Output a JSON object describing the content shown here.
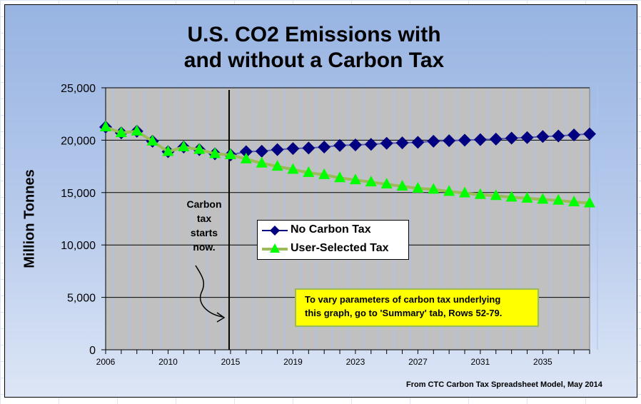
{
  "chart_data": {
    "type": "line",
    "title": "U.S. CO2 Emissions with and without a Carbon Tax",
    "title_lines": [
      "U.S. CO2 Emissions with",
      "and without a Carbon Tax"
    ],
    "xlabel": "",
    "ylabel": "Million Tonnes",
    "ylim": [
      0,
      25000
    ],
    "yticks": [
      "0",
      "5,000",
      "10,000",
      "15,000",
      "20,000",
      "25,000"
    ],
    "ytick_values": [
      0,
      5000,
      10000,
      15000,
      20000,
      25000
    ],
    "x_tick_labels": [
      "2006",
      "2010",
      "2015",
      "2019",
      "2023",
      "2027",
      "2031",
      "2035"
    ],
    "x_tick_label_every": 4,
    "categories": [
      "2006",
      "2007",
      "2008",
      "2009",
      "2010",
      "2011",
      "2012",
      "2013",
      "2015",
      "2016",
      "2017",
      "2018",
      "2019",
      "2020",
      "2021",
      "2022",
      "2023",
      "2024",
      "2025",
      "2026",
      "2027",
      "2028",
      "2029",
      "2030",
      "2031",
      "2032",
      "2033",
      "2034",
      "2035",
      "2036",
      "2037",
      "2038"
    ],
    "grid": {
      "horizontal": true,
      "vertical": true
    },
    "legend_placement": "center",
    "series": [
      {
        "name": "No Carbon Tax",
        "color": "#000080",
        "marker": "diamond",
        "values": [
          21250,
          20700,
          20850,
          19900,
          18900,
          19350,
          19100,
          18700,
          18600,
          18900,
          18950,
          19100,
          19200,
          19250,
          19350,
          19500,
          19550,
          19600,
          19700,
          19750,
          19800,
          19900,
          19950,
          20000,
          20050,
          20100,
          20200,
          20250,
          20350,
          20400,
          20500,
          20600
        ]
      },
      {
        "name": "User-Selected Tax",
        "color": "#00ff00",
        "line_color": "#9bbb59",
        "marker": "triangle",
        "values": [
          21250,
          20700,
          20850,
          19900,
          18900,
          19350,
          19100,
          18700,
          18600,
          18200,
          17800,
          17500,
          17200,
          16900,
          16700,
          16400,
          16200,
          16000,
          15800,
          15600,
          15400,
          15300,
          15100,
          14950,
          14800,
          14700,
          14550,
          14450,
          14350,
          14250,
          14100,
          14000
        ]
      }
    ],
    "annotations": {
      "carbon_tax_start": "Carbon tax starts now.",
      "carbon_tax_start_lines": [
        "Carbon",
        "tax",
        "starts",
        "now."
      ],
      "carbon_tax_start_category": "2015",
      "info_box": [
        "To vary parameters of carbon tax underlying",
        "this graph, go to 'Summary' tab, Rows 52-79."
      ],
      "source": "From CTC Carbon Tax Spreadsheet Model, May 2014"
    },
    "colors": {
      "plot_background": "#c0c0c0",
      "vertical_grid": "#a9c4f5",
      "horizontal_grid": "#000000",
      "info_box": "#ffff00"
    }
  }
}
